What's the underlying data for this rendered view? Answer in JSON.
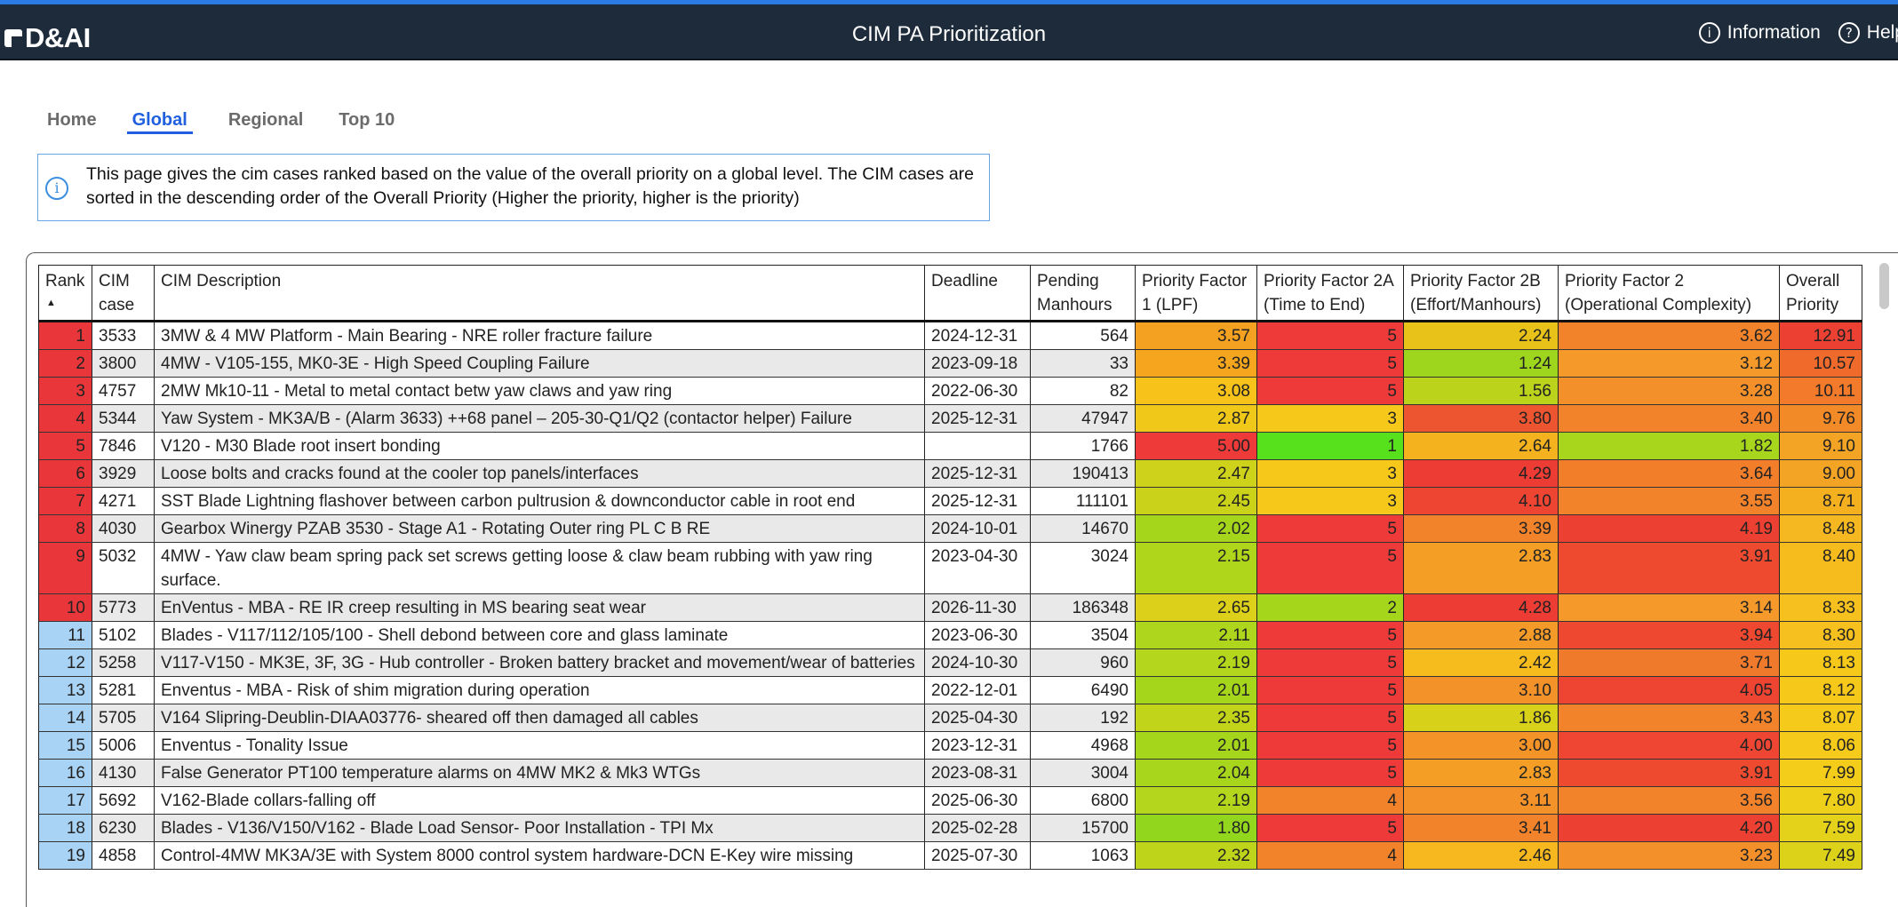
{
  "header": {
    "logo_text": "D&AI",
    "title": "CIM PA Prioritization",
    "info_label": "Information",
    "help_label": "Help",
    "bar_color": "#1d2b3a"
  },
  "tabs": [
    {
      "label": "Home"
    },
    {
      "label": "Global",
      "active": true
    },
    {
      "label": "Regional"
    },
    {
      "label": "Top 10"
    }
  ],
  "info_text": "This page gives the cim cases ranked based on the value of the overall priority on a global level. The CIM cases are sorted in the descending order of the Overall Priority (Higher the priority, higher is the priority)",
  "table": {
    "columns": [
      {
        "key": "rank",
        "label": "Rank"
      },
      {
        "key": "case",
        "label": "CIM case"
      },
      {
        "key": "desc",
        "label": "CIM Description"
      },
      {
        "key": "deadline",
        "label": "Deadline"
      },
      {
        "key": "manhours",
        "label": "Pending Manhours"
      },
      {
        "key": "pf1",
        "label": "Priority Factor 1 (LPF)"
      },
      {
        "key": "pf2a",
        "label": "Priority Factor 2A (Time to End)"
      },
      {
        "key": "pf2b",
        "label": "Priority Factor 2B (Effort/Manhours)"
      },
      {
        "key": "pf2",
        "label": "Priority Factor 2 (Operational Complexity)"
      },
      {
        "key": "overall",
        "label": "Overall Priority"
      }
    ],
    "sort_indicator": "▲",
    "rows": [
      {
        "rank": "1",
        "case": "3533",
        "desc": "3MW & 4 MW Platform - Main Bearing - NRE roller fracture failure",
        "deadline": "2024-12-31",
        "manhours": "564",
        "pf1": "3.57",
        "pf2a": "5",
        "pf2b": "2.24",
        "pf2": "3.62",
        "overall": "12.91",
        "rank_color": "#e8363a",
        "c1": "#f4a020",
        "c2a": "#ef3a3a",
        "c2b": "#e8c218",
        "c2": "#f2832a",
        "co": "#ec4032"
      },
      {
        "rank": "2",
        "case": "3800",
        "desc": "4MW - V105-155, MK0-3E - High Speed Coupling Failure",
        "deadline": "2023-09-18",
        "manhours": "33",
        "pf1": "3.39",
        "pf2a": "5",
        "pf2b": "1.24",
        "pf2": "3.12",
        "overall": "10.57",
        "rank_color": "#e8363a",
        "c1": "#f5a61e",
        "c2a": "#ef3a3a",
        "c2b": "#9ed61e",
        "c2": "#f4992a",
        "co": "#f06a2c"
      },
      {
        "rank": "3",
        "case": "4757",
        "desc": "2MW Mk10-11 - Metal to metal contact betw yaw claws and yaw ring",
        "deadline": "2022-06-30",
        "manhours": "82",
        "pf1": "3.08",
        "pf2a": "5",
        "pf2b": "1.56",
        "pf2": "3.28",
        "overall": "10.11",
        "rank_color": "#e8363a",
        "c1": "#f7c21a",
        "c2a": "#ef3a3a",
        "c2b": "#bcd31c",
        "c2": "#f4902a",
        "co": "#f27a2a"
      },
      {
        "rank": "4",
        "case": "5344",
        "desc": "Yaw System - MK3A/B - (Alarm 3633) ++68 panel – 205-30-Q1/Q2 (contactor helper) Failure",
        "deadline": "2025-12-31",
        "manhours": "47947",
        "pf1": "2.87",
        "pf2a": "3",
        "pf2b": "3.80",
        "pf2": "3.40",
        "overall": "9.76",
        "rank_color": "#e8363a",
        "c1": "#f0c81a",
        "c2a": "#f6c81a",
        "c2b": "#ed5530",
        "c2": "#f2832a",
        "co": "#f38a28"
      },
      {
        "rank": "5",
        "case": "7846",
        "desc": "V120 - M30 Blade root insert bonding",
        "deadline": "",
        "manhours": "1766",
        "pf1": "5.00",
        "pf2a": "1",
        "pf2b": "2.64",
        "pf2": "1.82",
        "overall": "9.10",
        "rank_color": "#e8363a",
        "c1": "#ef3a3a",
        "c2a": "#57e01c",
        "c2b": "#f4b21e",
        "c2": "#a8d61c",
        "co": "#f4a424"
      },
      {
        "rank": "6",
        "case": "3929",
        "desc": "Loose bolts and cracks found at the cooler top panels/interfaces",
        "deadline": "2025-12-31",
        "manhours": "190413",
        "pf1": "2.47",
        "pf2a": "3",
        "pf2b": "4.29",
        "pf2": "3.64",
        "overall": "9.00",
        "rank_color": "#e8363a",
        "c1": "#cfd21a",
        "c2a": "#f6c81a",
        "c2b": "#ec3c34",
        "c2": "#f27e2a",
        "co": "#f4a424"
      },
      {
        "rank": "7",
        "case": "4271",
        "desc": "SST Blade Lightning flashover between carbon pultrusion & downconductor cable in root end",
        "deadline": "2025-12-31",
        "manhours": "111101",
        "pf1": "2.45",
        "pf2a": "3",
        "pf2b": "4.10",
        "pf2": "3.55",
        "overall": "8.71",
        "rank_color": "#e8363a",
        "c1": "#cad21a",
        "c2a": "#f6c81a",
        "c2b": "#ee4432",
        "c2": "#f2832a",
        "co": "#f5b020"
      },
      {
        "rank": "8",
        "case": "4030",
        "desc": "Gearbox Winergy PZAB 3530 - Stage A1 - Rotating Outer ring PL C B RE",
        "deadline": "2024-10-01",
        "manhours": "14670",
        "pf1": "2.02",
        "pf2a": "5",
        "pf2b": "3.39",
        "pf2": "4.19",
        "overall": "8.48",
        "rank_color": "#e8363a",
        "c1": "#a6d61c",
        "c2a": "#ef3a3a",
        "c2b": "#f2832a",
        "c2": "#ec4032",
        "co": "#f5b820"
      },
      {
        "rank": "9",
        "case": "5032",
        "desc": "4MW - Yaw claw beam spring pack set screws getting loose & claw beam rubbing with yaw ring surface.",
        "deadline": "2023-04-30",
        "manhours": "3024",
        "pf1": "2.15",
        "pf2a": "5",
        "pf2b": "2.83",
        "pf2": "3.91",
        "overall": "8.40",
        "rank_color": "#e8363a",
        "c1": "#b0d61c",
        "c2a": "#ef3a3a",
        "c2b": "#f49e26",
        "c2": "#ee4a30",
        "co": "#f6bc1e"
      },
      {
        "rank": "10",
        "case": "5773",
        "desc": "EnVentus - MBA - RE IR creep resulting in MS bearing seat wear",
        "deadline": "2026-11-30",
        "manhours": "186348",
        "pf1": "2.65",
        "pf2a": "2",
        "pf2b": "4.28",
        "pf2": "3.14",
        "overall": "8.33",
        "rank_color": "#e8363a",
        "c1": "#ddd01a",
        "c2a": "#a6d61c",
        "c2b": "#ec3c34",
        "c2": "#f4992a",
        "co": "#f6c01e"
      },
      {
        "rank": "11",
        "case": "5102",
        "desc": "Blades - V117/112/105/100 - Shell debond between core and glass laminate",
        "deadline": "2023-06-30",
        "manhours": "3504",
        "pf1": "2.11",
        "pf2a": "5",
        "pf2b": "2.88",
        "pf2": "3.94",
        "overall": "8.30",
        "rank_color": "#a9d3f5",
        "c1": "#aed61c",
        "c2a": "#ef3a3a",
        "c2b": "#f49a28",
        "c2": "#ee4830",
        "co": "#f6c01e"
      },
      {
        "rank": "12",
        "case": "5258",
        "desc": "V117-V150 - MK3E, 3F, 3G - Hub controller - Broken battery bracket and movement/wear of batteries",
        "deadline": "2024-10-30",
        "manhours": "960",
        "pf1": "2.19",
        "pf2a": "5",
        "pf2b": "2.42",
        "pf2": "3.71",
        "overall": "8.13",
        "rank_color": "#a9d3f5",
        "c1": "#b4d61c",
        "c2a": "#ef3a3a",
        "c2b": "#f6bc1e",
        "c2": "#f07a2c",
        "co": "#f6c81a"
      },
      {
        "rank": "13",
        "case": "5281",
        "desc": "Enventus - MBA - Risk of shim migration during operation",
        "deadline": "2022-12-01",
        "manhours": "6490",
        "pf1": "2.01",
        "pf2a": "5",
        "pf2b": "3.10",
        "pf2": "4.05",
        "overall": "8.12",
        "rank_color": "#a9d3f5",
        "c1": "#a6d61c",
        "c2a": "#ef3a3a",
        "c2b": "#f4922a",
        "c2": "#ee4432",
        "co": "#f6c81a"
      },
      {
        "rank": "14",
        "case": "5705",
        "desc": "V164 Slipring-Deublin-DIAA03776- sheared off then damaged all cables",
        "deadline": "2025-04-30",
        "manhours": "192",
        "pf1": "2.35",
        "pf2a": "5",
        "pf2b": "1.86",
        "pf2": "3.43",
        "overall": "8.07",
        "rank_color": "#a9d3f5",
        "c1": "#c2d41a",
        "c2a": "#ef3a3a",
        "c2b": "#d8d11a",
        "c2": "#f2832a",
        "co": "#f6ca1a"
      },
      {
        "rank": "15",
        "case": "5006",
        "desc": "Enventus - Tonality Issue",
        "deadline": "2023-12-31",
        "manhours": "4968",
        "pf1": "2.01",
        "pf2a": "5",
        "pf2b": "3.00",
        "pf2": "4.00",
        "overall": "8.06",
        "rank_color": "#a9d3f5",
        "c1": "#a6d61c",
        "c2a": "#ef3a3a",
        "c2b": "#f49428",
        "c2": "#ee4632",
        "co": "#f6ca1a"
      },
      {
        "rank": "16",
        "case": "4130",
        "desc": "False Generator PT100 temperature alarms on 4MW MK2 & Mk3 WTGs",
        "deadline": "2023-08-31",
        "manhours": "3004",
        "pf1": "2.04",
        "pf2a": "5",
        "pf2b": "2.83",
        "pf2": "3.91",
        "overall": "7.99",
        "rank_color": "#a9d3f5",
        "c1": "#a8d61c",
        "c2a": "#ef3a3a",
        "c2b": "#f49e26",
        "c2": "#ee4a30",
        "co": "#f4cc1a"
      },
      {
        "rank": "17",
        "case": "5692",
        "desc": "V162-Blade collars-falling off",
        "deadline": "2025-06-30",
        "manhours": "6800",
        "pf1": "2.19",
        "pf2a": "4",
        "pf2b": "3.11",
        "pf2": "3.56",
        "overall": "7.80",
        "rank_color": "#a9d3f5",
        "c1": "#b4d61c",
        "c2a": "#f2832a",
        "c2b": "#f4922a",
        "c2": "#f2832a",
        "co": "#eed01a"
      },
      {
        "rank": "18",
        "case": "6230",
        "desc": "Blades - V136/V150/V162 - Blade Load Sensor- Poor Installation - TPI Mx",
        "deadline": "2025-02-28",
        "manhours": "15700",
        "pf1": "1.80",
        "pf2a": "5",
        "pf2b": "3.41",
        "pf2": "4.20",
        "overall": "7.59",
        "rank_color": "#a9d3f5",
        "c1": "#92d61e",
        "c2a": "#ef3a3a",
        "c2b": "#f2832a",
        "c2": "#ec4032",
        "co": "#e4d21a"
      },
      {
        "rank": "19",
        "case": "4858",
        "desc": "Control-4MW MK3A/3E with System 8000 control system hardware-DCN E-Key wire missing",
        "deadline": "2025-07-30",
        "manhours": "1063",
        "pf1": "2.32",
        "pf2a": "4",
        "pf2b": "2.46",
        "pf2": "3.23",
        "overall": "7.49",
        "rank_color": "#a9d3f5",
        "c1": "#bed41a",
        "c2a": "#f2832a",
        "c2b": "#f6b81e",
        "c2": "#f4902a",
        "co": "#dcd21a"
      }
    ]
  }
}
